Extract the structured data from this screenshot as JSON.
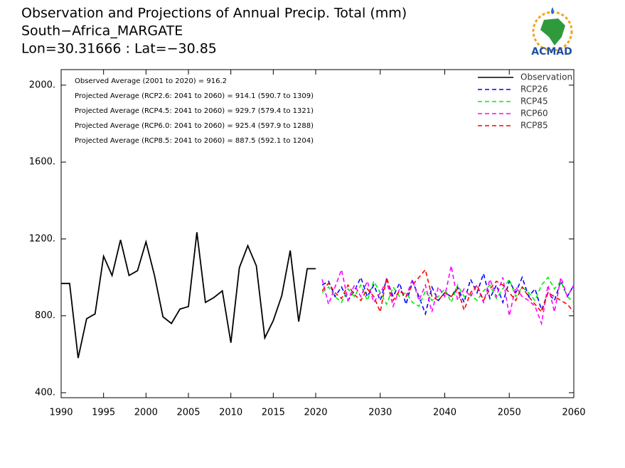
{
  "chart_data": {
    "type": "line",
    "title": "Observation and Projections of Annual Precip. Total (mm)",
    "subtitle": "South−Africa_MARGATE",
    "location": "Lon=30.31666 : Lat=−30.85",
    "logo": "ACMAD",
    "annotations": [
      "Observed Average (2001 to 2020) = 916.2",
      "Projected Average (RCP2.6: 2041 to 2060) = 914.1 (590.7 to 1309)",
      "Projected Average (RCP4.5: 2041 to 2060) = 929.7 (579.4 to 1321)",
      "Projected Average (RCP6.0: 2041 to 2060) = 925.4 (597.9 to 1288)",
      "Projected Average (RCP8.5: 2041 to 2060) = 887.5 (592.1 to 1204)"
    ],
    "xlim": [
      1990,
      2060
    ],
    "ylim": [
      374,
      2081
    ],
    "xticks": [
      1990,
      1995,
      2000,
      2005,
      2010,
      2015,
      2020,
      2030,
      2040,
      2050,
      2060
    ],
    "yticks": [
      {
        "value": 400,
        "label": "400."
      },
      {
        "value": 800,
        "label": "800."
      },
      {
        "value": 1200,
        "label": "1200."
      },
      {
        "value": 1600,
        "label": "1600."
      },
      {
        "value": 2000,
        "label": "2000."
      }
    ],
    "legend": "upper right",
    "series": [
      {
        "name": "Observation",
        "color": "#000000",
        "dash": false,
        "x": [
          1990,
          1991,
          1992,
          1993,
          1994,
          1995,
          1996,
          1997,
          1998,
          1999,
          2000,
          2001,
          2002,
          2003,
          2004,
          2005,
          2006,
          2007,
          2008,
          2009,
          2010,
          2011,
          2012,
          2013,
          2014,
          2015,
          2016,
          2017,
          2018,
          2019,
          2020
        ],
        "values": [
          968,
          968,
          580,
          785,
          810,
          1110,
          1010,
          1195,
          1010,
          1035,
          1185,
          1010,
          795,
          760,
          835,
          848,
          1235,
          870,
          895,
          930,
          660,
          1050,
          1165,
          1060,
          685,
          775,
          905,
          1140,
          770,
          1045,
          1045
        ]
      },
      {
        "name": "RCP26",
        "color": "#0000ff",
        "dash": true,
        "x": [
          2021,
          2022,
          2023,
          2024,
          2025,
          2026,
          2027,
          2028,
          2029,
          2030,
          2031,
          2032,
          2033,
          2034,
          2035,
          2036,
          2037,
          2038,
          2039,
          2040,
          2041,
          2042,
          2043,
          2044,
          2045,
          2046,
          2047,
          2048,
          2049,
          2050,
          2051,
          2052,
          2053,
          2054,
          2055,
          2056,
          2057,
          2058,
          2059,
          2060
        ],
        "values": [
          960,
          980,
          900,
          950,
          880,
          930,
          1000,
          900,
          960,
          880,
          990,
          900,
          970,
          860,
          980,
          900,
          810,
          950,
          880,
          920,
          900,
          950,
          870,
          990,
          920,
          1020,
          890,
          960,
          870,
          980,
          920,
          1000,
          900,
          940,
          830,
          920,
          880,
          980,
          900,
          960
        ]
      },
      {
        "name": "RCP45",
        "color": "#00ee00",
        "dash": true,
        "x": [
          2021,
          2022,
          2023,
          2024,
          2025,
          2026,
          2027,
          2028,
          2029,
          2030,
          2031,
          2032,
          2033,
          2034,
          2035,
          2036,
          2037,
          2038,
          2039,
          2040,
          2041,
          2042,
          2043,
          2044,
          2045,
          2046,
          2047,
          2048,
          2049,
          2050,
          2051,
          2052,
          2053,
          2054,
          2055,
          2056,
          2057,
          2058,
          2059,
          2060
        ],
        "values": [
          920,
          950,
          900,
          870,
          940,
          900,
          960,
          880,
          980,
          920,
          860,
          950,
          900,
          920,
          870,
          850,
          930,
          880,
          900,
          940,
          870,
          960,
          900,
          910,
          880,
          930,
          960,
          890,
          940,
          990,
          900,
          950,
          920,
          880,
          960,
          1000,
          940,
          980,
          900,
          870
        ]
      },
      {
        "name": "RCP60",
        "color": "#ff00ff",
        "dash": true,
        "x": [
          2021,
          2022,
          2023,
          2024,
          2025,
          2026,
          2027,
          2028,
          2029,
          2030,
          2031,
          2032,
          2033,
          2034,
          2035,
          2036,
          2037,
          2038,
          2039,
          2040,
          2041,
          2042,
          2043,
          2044,
          2045,
          2046,
          2047,
          2048,
          2049,
          2050,
          2051,
          2052,
          2053,
          2054,
          2055,
          2056,
          2057,
          2058,
          2059,
          2060
        ],
        "values": [
          990,
          860,
          950,
          1040,
          880,
          960,
          900,
          980,
          870,
          920,
          980,
          850,
          940,
          900,
          990,
          880,
          960,
          820,
          950,
          900,
          1060,
          880,
          940,
          900,
          960,
          870,
          990,
          900,
          1000,
          800,
          950,
          900,
          880,
          850,
          760,
          960,
          820,
          1000,
          900,
          960
        ]
      },
      {
        "name": "RCP85",
        "color": "#ff0000",
        "dash": true,
        "x": [
          2021,
          2022,
          2023,
          2024,
          2025,
          2026,
          2027,
          2028,
          2029,
          2030,
          2031,
          2032,
          2033,
          2034,
          2035,
          2036,
          2037,
          2038,
          2039,
          2040,
          2041,
          2042,
          2043,
          2044,
          2045,
          2046,
          2047,
          2048,
          2049,
          2050,
          2051,
          2052,
          2053,
          2054,
          2055,
          2056,
          2057,
          2058,
          2059,
          2060
        ],
        "values": [
          930,
          970,
          920,
          890,
          960,
          910,
          880,
          940,
          900,
          820,
          1000,
          880,
          930,
          900,
          960,
          1000,
          1040,
          900,
          880,
          920,
          900,
          940,
          830,
          920,
          960,
          880,
          940,
          980,
          960,
          920,
          880,
          950,
          900,
          860,
          820,
          920,
          900,
          880,
          860,
          820
        ]
      }
    ]
  }
}
